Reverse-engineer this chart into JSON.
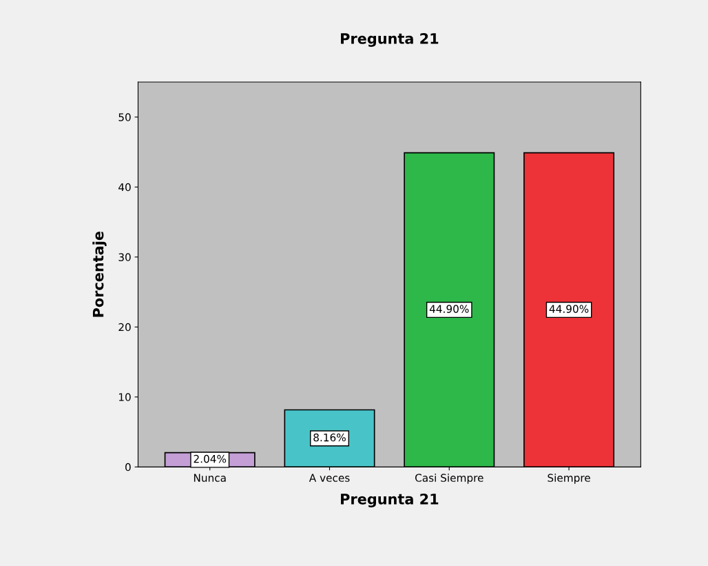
{
  "chart_data": {
    "type": "bar",
    "title": "Pregunta 21",
    "xlabel": "Pregunta 21",
    "ylabel": "Porcentaje",
    "categories": [
      "Nunca",
      "A veces",
      "Casi Siempre",
      "Siempre"
    ],
    "values": [
      2.04,
      8.16,
      44.9,
      44.9
    ],
    "colors": [
      "#c39fd6",
      "#48c4c8",
      "#2eb84a",
      "#ee3338"
    ],
    "value_labels": [
      "2.04%",
      "8.16%",
      "44.90%",
      "44.90%"
    ],
    "ylim": [
      0,
      55
    ],
    "yticks": [
      0,
      10,
      20,
      30,
      40,
      50
    ],
    "grid": false,
    "legend": false
  }
}
